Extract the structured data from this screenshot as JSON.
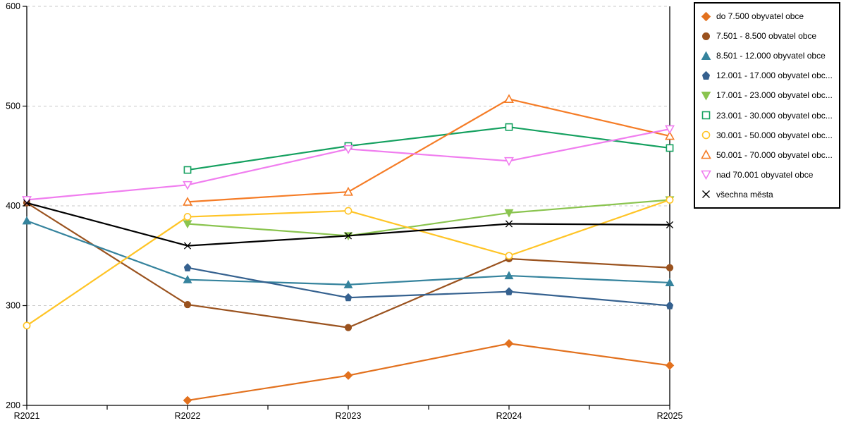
{
  "chart_data": {
    "type": "line",
    "title": "",
    "xlabel": "",
    "ylabel": "",
    "x_categories": [
      "R2021",
      "R2022",
      "R2023",
      "R2024",
      "R2025"
    ],
    "ylim": [
      200,
      600
    ],
    "yticks": [
      200,
      300,
      400,
      500,
      600
    ],
    "grid": "horizontal-dashed",
    "grid_color": "#C9C9C9",
    "axis_color": "#000000",
    "legend_position": "right",
    "series": [
      {
        "name": "do 7.500 obyvatel obce",
        "marker": "diamond-filled",
        "color": "#E2711E",
        "values": [
          null,
          205,
          230,
          262,
          240
        ]
      },
      {
        "name": "7.501 - 8.500 obvatel obce",
        "marker": "circle-filled",
        "color": "#9A521E",
        "values": [
          403,
          301,
          278,
          347,
          338
        ]
      },
      {
        "name": "8.501 - 12.000 obyvatel obce",
        "marker": "triangle-up-filled",
        "color": "#35839D",
        "values": [
          385,
          326,
          321,
          330,
          323
        ]
      },
      {
        "name": "12.001 - 17.000 obyvatel obc...",
        "marker": "pentagon-filled",
        "color": "#35618F",
        "values": [
          null,
          338,
          308,
          314,
          300
        ]
      },
      {
        "name": "17.001 - 23.000 obyvatel obc...",
        "marker": "triangle-down-filled",
        "color": "#8AC44F",
        "values": [
          null,
          382,
          370,
          393,
          406
        ]
      },
      {
        "name": "23.001 - 30.000 obyvatel obc...",
        "marker": "square-open",
        "color": "#14A05F",
        "values": [
          null,
          436,
          460,
          479,
          458
        ]
      },
      {
        "name": "30.001 - 50.000 obyvatel obc...",
        "marker": "circle-open",
        "color": "#FFC425",
        "values": [
          280,
          389,
          395,
          350,
          406
        ]
      },
      {
        "name": "50.001 - 70.000 obyvatel obc...",
        "marker": "triangle-up-open",
        "color": "#F57C26",
        "values": [
          null,
          404,
          414,
          507,
          470
        ]
      },
      {
        "name": "nad 70.001 obyvatel obce",
        "marker": "triangle-down-open",
        "color": "#F07DEF",
        "values": [
          406,
          421,
          457,
          445,
          477
        ]
      },
      {
        "name": "všechna města",
        "marker": "x",
        "color": "#000000",
        "values": [
          403,
          360,
          370,
          382,
          381
        ]
      }
    ]
  }
}
